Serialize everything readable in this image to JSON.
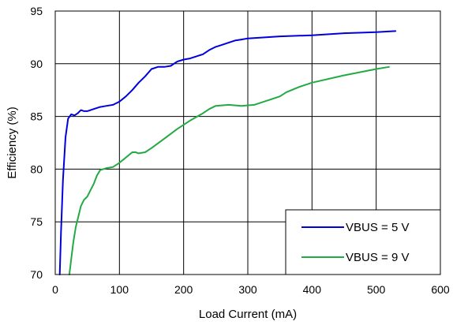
{
  "chart_data": {
    "type": "line",
    "xlabel": "Load Current (mA)",
    "ylabel": "Efficiency (%)",
    "xlim": [
      0,
      600
    ],
    "ylim": [
      70,
      95
    ],
    "xticks": [
      0,
      100,
      200,
      300,
      400,
      500,
      600
    ],
    "yticks": [
      70,
      75,
      80,
      85,
      90,
      95
    ],
    "grid": true,
    "legend_position": "bottom-right",
    "series": [
      {
        "name": "VBUS = 5 V",
        "color": "#0000dd",
        "x": [
          7,
          9,
          12,
          16,
          20,
          25,
          30,
          35,
          40,
          45,
          50,
          55,
          60,
          70,
          80,
          90,
          100,
          110,
          120,
          130,
          140,
          150,
          160,
          170,
          180,
          190,
          200,
          210,
          220,
          230,
          240,
          250,
          260,
          270,
          280,
          290,
          300,
          350,
          400,
          450,
          500,
          530
        ],
        "y": [
          70,
          74,
          79,
          83,
          84.8,
          85.2,
          85.1,
          85.3,
          85.6,
          85.5,
          85.5,
          85.6,
          85.7,
          85.9,
          86.0,
          86.1,
          86.4,
          86.9,
          87.5,
          88.2,
          88.8,
          89.5,
          89.7,
          89.7,
          89.8,
          90.2,
          90.4,
          90.5,
          90.7,
          90.9,
          91.3,
          91.6,
          91.8,
          92.0,
          92.2,
          92.3,
          92.4,
          92.6,
          92.7,
          92.9,
          93.0,
          93.1
        ]
      },
      {
        "name": "VBUS = 9 V",
        "color": "#22aa44",
        "x": [
          22,
          25,
          28,
          32,
          36,
          40,
          45,
          50,
          55,
          60,
          65,
          70,
          80,
          90,
          100,
          110,
          120,
          125,
          130,
          140,
          150,
          170,
          190,
          210,
          230,
          240,
          250,
          270,
          290,
          310,
          330,
          350,
          360,
          380,
          400,
          450,
          500,
          520
        ],
        "y": [
          70,
          71.5,
          73,
          74.5,
          75.5,
          76.5,
          77.1,
          77.4,
          78,
          78.6,
          79.4,
          79.9,
          80.1,
          80.2,
          80.6,
          81.1,
          81.6,
          81.6,
          81.5,
          81.6,
          82.0,
          82.9,
          83.8,
          84.6,
          85.3,
          85.7,
          86.0,
          86.1,
          86.0,
          86.1,
          86.5,
          86.9,
          87.3,
          87.8,
          88.2,
          88.9,
          89.5,
          89.7
        ]
      }
    ]
  }
}
